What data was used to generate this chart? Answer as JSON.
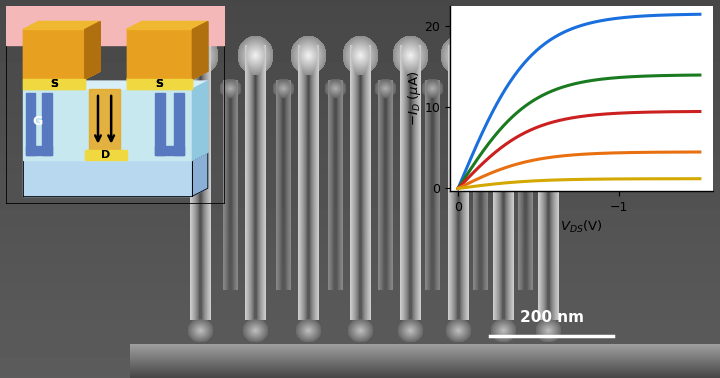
{
  "fig_width": 7.2,
  "fig_height": 3.78,
  "dpi": 100,
  "iv_curves": {
    "x_end": -1.5,
    "colors": [
      "#1a6fde",
      "#1a7a20",
      "#cc2020",
      "#e87010",
      "#d4a800"
    ],
    "saturation_currents": [
      21.5,
      14.0,
      9.5,
      4.5,
      1.2
    ],
    "xlim": [
      0.05,
      -1.58
    ],
    "ylim": [
      -0.3,
      22.5
    ],
    "yticks": [
      0,
      10,
      20
    ],
    "xticks": [
      0,
      -1
    ]
  },
  "schematic": {
    "pink_bg": "#f5b8b8",
    "orange_block": "#e8a020",
    "orange_top": "#f0b830",
    "orange_side": "#b07010",
    "yellow_contact": "#f0d840",
    "light_blue": "#b8d8f0",
    "blue_gate": "#5878c0",
    "teal_body": "#c8e8f0",
    "white": "#ffffff",
    "black": "#000000",
    "outline": "#000000"
  }
}
